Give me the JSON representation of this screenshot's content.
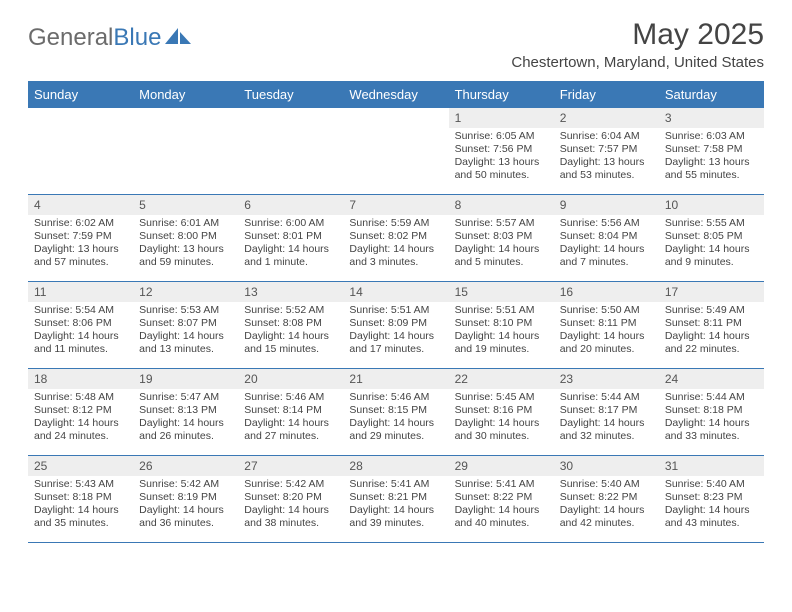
{
  "logo": {
    "text1": "General",
    "text2": "Blue"
  },
  "title": "May 2025",
  "location": "Chestertown, Maryland, United States",
  "colors": {
    "header_bg": "#3a78b5",
    "header_text": "#ffffff",
    "daynum_bg": "#eeeeee",
    "row_border": "#3a78b5",
    "body_text": "#444444"
  },
  "day_names": [
    "Sunday",
    "Monday",
    "Tuesday",
    "Wednesday",
    "Thursday",
    "Friday",
    "Saturday"
  ],
  "weeks": [
    [
      {
        "num": "",
        "lines": []
      },
      {
        "num": "",
        "lines": []
      },
      {
        "num": "",
        "lines": []
      },
      {
        "num": "",
        "lines": []
      },
      {
        "num": "1",
        "lines": [
          "Sunrise: 6:05 AM",
          "Sunset: 7:56 PM",
          "Daylight: 13 hours",
          "and 50 minutes."
        ]
      },
      {
        "num": "2",
        "lines": [
          "Sunrise: 6:04 AM",
          "Sunset: 7:57 PM",
          "Daylight: 13 hours",
          "and 53 minutes."
        ]
      },
      {
        "num": "3",
        "lines": [
          "Sunrise: 6:03 AM",
          "Sunset: 7:58 PM",
          "Daylight: 13 hours",
          "and 55 minutes."
        ]
      }
    ],
    [
      {
        "num": "4",
        "lines": [
          "Sunrise: 6:02 AM",
          "Sunset: 7:59 PM",
          "Daylight: 13 hours",
          "and 57 minutes."
        ]
      },
      {
        "num": "5",
        "lines": [
          "Sunrise: 6:01 AM",
          "Sunset: 8:00 PM",
          "Daylight: 13 hours",
          "and 59 minutes."
        ]
      },
      {
        "num": "6",
        "lines": [
          "Sunrise: 6:00 AM",
          "Sunset: 8:01 PM",
          "Daylight: 14 hours",
          "and 1 minute."
        ]
      },
      {
        "num": "7",
        "lines": [
          "Sunrise: 5:59 AM",
          "Sunset: 8:02 PM",
          "Daylight: 14 hours",
          "and 3 minutes."
        ]
      },
      {
        "num": "8",
        "lines": [
          "Sunrise: 5:57 AM",
          "Sunset: 8:03 PM",
          "Daylight: 14 hours",
          "and 5 minutes."
        ]
      },
      {
        "num": "9",
        "lines": [
          "Sunrise: 5:56 AM",
          "Sunset: 8:04 PM",
          "Daylight: 14 hours",
          "and 7 minutes."
        ]
      },
      {
        "num": "10",
        "lines": [
          "Sunrise: 5:55 AM",
          "Sunset: 8:05 PM",
          "Daylight: 14 hours",
          "and 9 minutes."
        ]
      }
    ],
    [
      {
        "num": "11",
        "lines": [
          "Sunrise: 5:54 AM",
          "Sunset: 8:06 PM",
          "Daylight: 14 hours",
          "and 11 minutes."
        ]
      },
      {
        "num": "12",
        "lines": [
          "Sunrise: 5:53 AM",
          "Sunset: 8:07 PM",
          "Daylight: 14 hours",
          "and 13 minutes."
        ]
      },
      {
        "num": "13",
        "lines": [
          "Sunrise: 5:52 AM",
          "Sunset: 8:08 PM",
          "Daylight: 14 hours",
          "and 15 minutes."
        ]
      },
      {
        "num": "14",
        "lines": [
          "Sunrise: 5:51 AM",
          "Sunset: 8:09 PM",
          "Daylight: 14 hours",
          "and 17 minutes."
        ]
      },
      {
        "num": "15",
        "lines": [
          "Sunrise: 5:51 AM",
          "Sunset: 8:10 PM",
          "Daylight: 14 hours",
          "and 19 minutes."
        ]
      },
      {
        "num": "16",
        "lines": [
          "Sunrise: 5:50 AM",
          "Sunset: 8:11 PM",
          "Daylight: 14 hours",
          "and 20 minutes."
        ]
      },
      {
        "num": "17",
        "lines": [
          "Sunrise: 5:49 AM",
          "Sunset: 8:11 PM",
          "Daylight: 14 hours",
          "and 22 minutes."
        ]
      }
    ],
    [
      {
        "num": "18",
        "lines": [
          "Sunrise: 5:48 AM",
          "Sunset: 8:12 PM",
          "Daylight: 14 hours",
          "and 24 minutes."
        ]
      },
      {
        "num": "19",
        "lines": [
          "Sunrise: 5:47 AM",
          "Sunset: 8:13 PM",
          "Daylight: 14 hours",
          "and 26 minutes."
        ]
      },
      {
        "num": "20",
        "lines": [
          "Sunrise: 5:46 AM",
          "Sunset: 8:14 PM",
          "Daylight: 14 hours",
          "and 27 minutes."
        ]
      },
      {
        "num": "21",
        "lines": [
          "Sunrise: 5:46 AM",
          "Sunset: 8:15 PM",
          "Daylight: 14 hours",
          "and 29 minutes."
        ]
      },
      {
        "num": "22",
        "lines": [
          "Sunrise: 5:45 AM",
          "Sunset: 8:16 PM",
          "Daylight: 14 hours",
          "and 30 minutes."
        ]
      },
      {
        "num": "23",
        "lines": [
          "Sunrise: 5:44 AM",
          "Sunset: 8:17 PM",
          "Daylight: 14 hours",
          "and 32 minutes."
        ]
      },
      {
        "num": "24",
        "lines": [
          "Sunrise: 5:44 AM",
          "Sunset: 8:18 PM",
          "Daylight: 14 hours",
          "and 33 minutes."
        ]
      }
    ],
    [
      {
        "num": "25",
        "lines": [
          "Sunrise: 5:43 AM",
          "Sunset: 8:18 PM",
          "Daylight: 14 hours",
          "and 35 minutes."
        ]
      },
      {
        "num": "26",
        "lines": [
          "Sunrise: 5:42 AM",
          "Sunset: 8:19 PM",
          "Daylight: 14 hours",
          "and 36 minutes."
        ]
      },
      {
        "num": "27",
        "lines": [
          "Sunrise: 5:42 AM",
          "Sunset: 8:20 PM",
          "Daylight: 14 hours",
          "and 38 minutes."
        ]
      },
      {
        "num": "28",
        "lines": [
          "Sunrise: 5:41 AM",
          "Sunset: 8:21 PM",
          "Daylight: 14 hours",
          "and 39 minutes."
        ]
      },
      {
        "num": "29",
        "lines": [
          "Sunrise: 5:41 AM",
          "Sunset: 8:22 PM",
          "Daylight: 14 hours",
          "and 40 minutes."
        ]
      },
      {
        "num": "30",
        "lines": [
          "Sunrise: 5:40 AM",
          "Sunset: 8:22 PM",
          "Daylight: 14 hours",
          "and 42 minutes."
        ]
      },
      {
        "num": "31",
        "lines": [
          "Sunrise: 5:40 AM",
          "Sunset: 8:23 PM",
          "Daylight: 14 hours",
          "and 43 minutes."
        ]
      }
    ]
  ]
}
